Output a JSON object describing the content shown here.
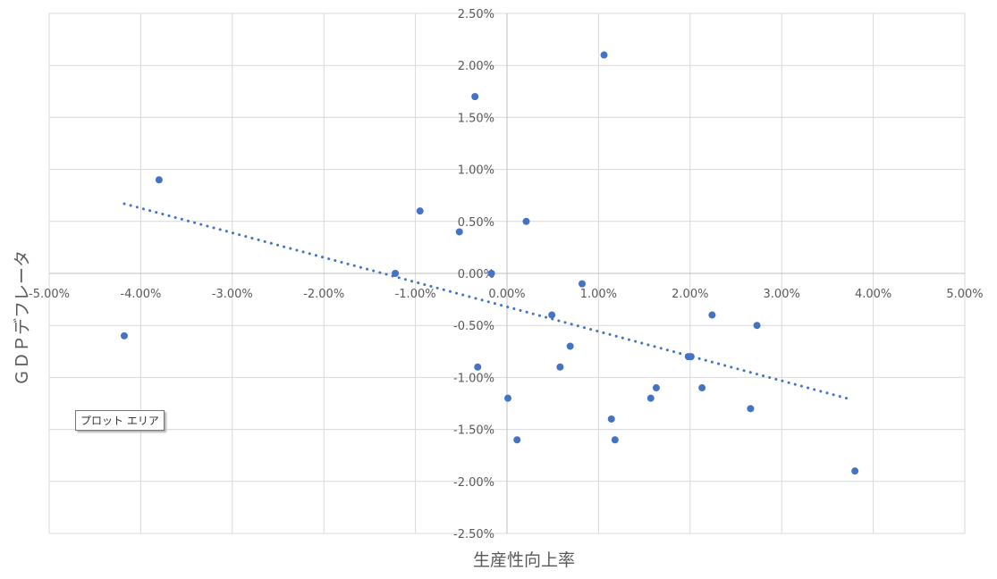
{
  "chart_data": {
    "type": "scatter",
    "xlabel": "生産性向上率",
    "ylabel": "ＧＤＰデフレータ",
    "xlim": [
      -0.05,
      0.05
    ],
    "ylim": [
      -0.025,
      0.025
    ],
    "x_ticks": [
      "-5.00%",
      "-4.00%",
      "-3.00%",
      "-2.00%",
      "-1.00%",
      "0.00%",
      "1.00%",
      "2.00%",
      "3.00%",
      "4.00%",
      "5.00%"
    ],
    "y_ticks": [
      "2.50%",
      "2.00%",
      "1.50%",
      "1.00%",
      "0.50%",
      "0.00%",
      "-0.50%",
      "-1.00%",
      "-1.50%",
      "-2.00%",
      "-2.50%"
    ],
    "grid": true,
    "marker_color": "#4472c4",
    "series": [
      {
        "points": [
          [
            -0.0418,
            -0.006
          ],
          [
            -0.038,
            0.009
          ],
          [
            -0.0122,
            0.0
          ],
          [
            -0.0095,
            0.006
          ],
          [
            -0.0052,
            0.004
          ],
          [
            -0.0035,
            0.017
          ],
          [
            -0.0032,
            -0.009
          ],
          [
            -0.0017,
            0.0
          ],
          [
            0.0001,
            -0.012
          ],
          [
            0.0011,
            -0.016
          ],
          [
            0.0021,
            0.005
          ],
          [
            0.0049,
            -0.004
          ],
          [
            0.0058,
            -0.009
          ],
          [
            0.0069,
            -0.007
          ],
          [
            0.0082,
            -0.001
          ],
          [
            0.0106,
            0.021
          ],
          [
            0.0114,
            -0.014
          ],
          [
            0.0118,
            -0.016
          ],
          [
            0.0157,
            -0.012
          ],
          [
            0.0163,
            -0.011
          ],
          [
            0.0198,
            -0.008
          ],
          [
            0.0201,
            -0.008
          ],
          [
            0.0213,
            -0.011
          ],
          [
            0.0224,
            -0.004
          ],
          [
            0.0266,
            -0.013
          ],
          [
            0.0273,
            -0.005
          ],
          [
            0.038,
            -0.019
          ]
        ]
      }
    ],
    "trendline": {
      "type": "linear",
      "x_start": -0.0418,
      "x_end": 0.0375,
      "y_start": 0.0067,
      "y_end": -0.0121,
      "color": "#4472c4",
      "style": "dotted"
    }
  },
  "tooltip": {
    "text": "プロット エリア"
  }
}
